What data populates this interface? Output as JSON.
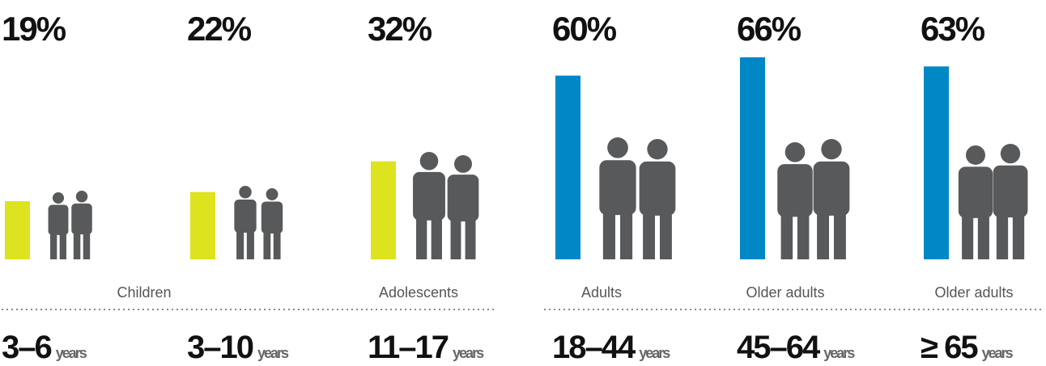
{
  "chart_data": {
    "type": "bar",
    "categories": [
      "3–6",
      "3–10",
      "11–17",
      "18–44",
      "45–64",
      "≥ 65"
    ],
    "unit_label": "years",
    "values": [
      19,
      22,
      32,
      60,
      66,
      63
    ],
    "value_labels": [
      "19%",
      "22%",
      "32%",
      "60%",
      "66%",
      "63%"
    ],
    "colors": [
      "#dde31e",
      "#dde31e",
      "#dde31e",
      "#0088c6",
      "#0088c6",
      "#0088c6"
    ],
    "group_labels": [
      "Children",
      "Adolescents",
      "Adults",
      "Older adults",
      "Older adults"
    ]
  }
}
